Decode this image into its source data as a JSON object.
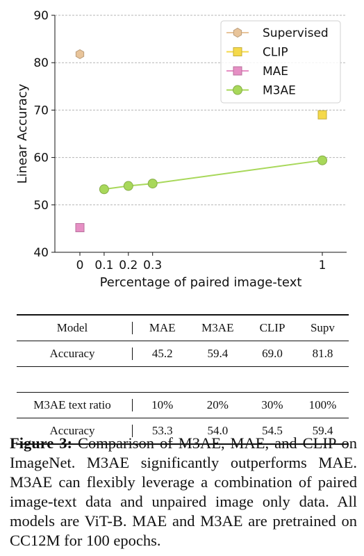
{
  "chart_data": {
    "type": "scatter",
    "xlabel": "Percentage of paired image-text",
    "ylabel": "Linear Accuracy",
    "ylim": [
      40,
      90
    ],
    "yticks": [
      40,
      50,
      60,
      70,
      80,
      90
    ],
    "xticks": [
      {
        "value": 0,
        "label": "0"
      },
      {
        "value": 0.1,
        "label": "0.1"
      },
      {
        "value": 0.2,
        "label": "0.2"
      },
      {
        "value": 0.3,
        "label": "0.3"
      },
      {
        "value": 1,
        "label": "1"
      }
    ],
    "grid": "y-dashed",
    "legend_position": "top-right",
    "series": [
      {
        "name": "Supervised",
        "marker": "hexagon",
        "color": "#e8c49a",
        "points": [
          {
            "x": 0,
            "y": 81.8
          }
        ]
      },
      {
        "name": "CLIP",
        "marker": "square",
        "color": "#f5d94a",
        "points": [
          {
            "x": 1,
            "y": 69.0
          }
        ]
      },
      {
        "name": "MAE",
        "marker": "square",
        "color": "#e68fc4",
        "points": [
          {
            "x": 0,
            "y": 45.2
          }
        ]
      },
      {
        "name": "M3AE",
        "marker": "circle",
        "color": "#a8d85a",
        "line": true,
        "points": [
          {
            "x": 0.1,
            "y": 53.3
          },
          {
            "x": 0.2,
            "y": 54.0
          },
          {
            "x": 0.3,
            "y": 54.5
          },
          {
            "x": 1,
            "y": 59.4
          }
        ]
      }
    ]
  },
  "table": {
    "header": [
      "Model",
      "MAE",
      "M3AE",
      "CLIP",
      "Supv"
    ],
    "row1": [
      "Accuracy",
      "45.2",
      "59.4",
      "69.0",
      "81.8"
    ],
    "row2": [
      "M3AE text ratio",
      "10%",
      "20%",
      "30%",
      "100%"
    ],
    "row3": [
      "Accuracy",
      "53.3",
      "54.0",
      "54.5",
      "59.4"
    ]
  },
  "caption": {
    "label": "Figure 3:",
    "text": " Comparison of M3AE, MAE, and CLIP on ImageNet.  M3AE significantly outperforms MAE. M3AE can flexibly leverage a combination of paired image-text data and unpaired image only data. All models are ViT-B. MAE and M3AE are pretrained on CC12M for 100 epochs."
  }
}
